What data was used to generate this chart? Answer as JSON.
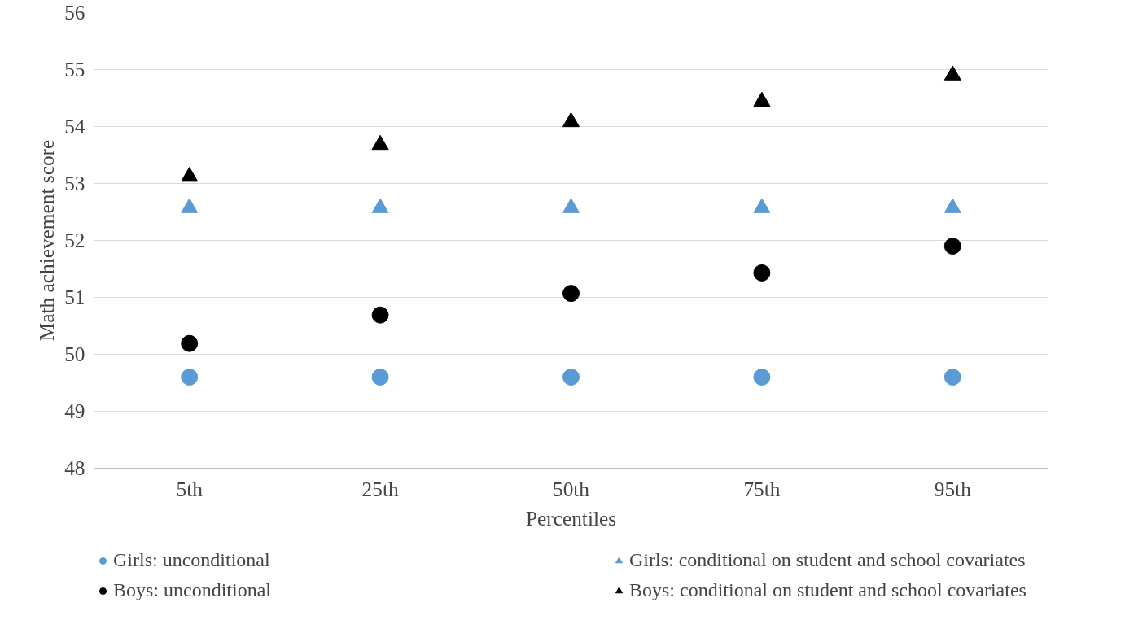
{
  "chart_data": {
    "type": "scatter",
    "xlabel": "Percentiles",
    "ylabel": "Math achievement score",
    "categories": [
      "5th",
      "25th",
      "50th",
      "75th",
      "95th"
    ],
    "series": [
      {
        "name": "Girls: unconditional",
        "color": "#5b9bd5",
        "marker": "circle",
        "values": [
          49.6,
          49.6,
          49.6,
          49.6,
          49.6
        ]
      },
      {
        "name": "Boys: unconditional",
        "color": "#000000",
        "marker": "circle",
        "values": [
          50.19,
          50.69,
          51.07,
          51.43,
          51.9
        ]
      },
      {
        "name": "Girls: conditional on student and school covariates",
        "color": "#5b9bd5",
        "marker": "triangle",
        "values": [
          52.57,
          52.57,
          52.57,
          52.57,
          52.57
        ]
      },
      {
        "name": "Boys: conditional on student and school covariates",
        "color": "#000000",
        "marker": "triangle",
        "values": [
          53.12,
          53.68,
          54.08,
          54.44,
          54.9
        ]
      }
    ],
    "ylim": [
      48,
      56
    ],
    "yticks": [
      48,
      49,
      50,
      51,
      52,
      53,
      54,
      55,
      56
    ],
    "grid": "y",
    "legend": "bottom"
  }
}
